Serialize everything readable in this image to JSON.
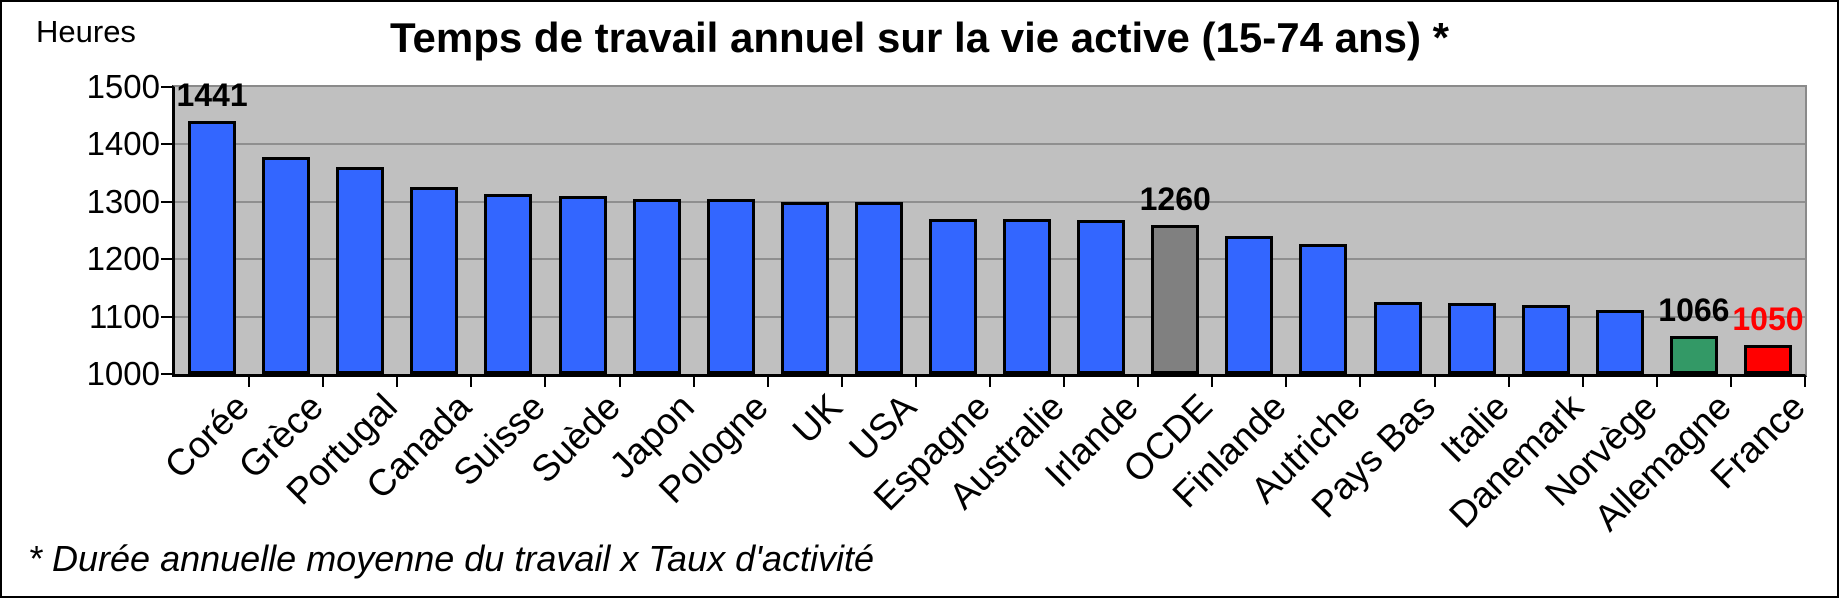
{
  "chart_data": {
    "type": "bar",
    "title": "Temps de travail annuel sur la vie active (15-74 ans) *",
    "ylabel": "Heures",
    "footnote": "* Durée annuelle moyenne du travail x Taux d'activité",
    "ylim": [
      1000,
      1500
    ],
    "yticks": [
      1500,
      1400,
      1300,
      1200,
      1100,
      1000
    ],
    "grid": true,
    "legend": false,
    "plot_bg_color": "#C0C0C0",
    "gridline_color": "#8f8f8f",
    "bar_default_color": "#3366FF",
    "bar_outline_color": "#000000",
    "categories": [
      "Corée",
      "Grèce",
      "Portugal",
      "Canada",
      "Suisse",
      "Suède",
      "Japon",
      "Pologne",
      "UK",
      "USA",
      "Espagne",
      "Australie",
      "Irlande",
      "OCDE",
      "Finlande",
      "Autriche",
      "Pays Bas",
      "Italie",
      "Danemark",
      "Norvège",
      "Allemagne",
      "France"
    ],
    "values": [
      1441,
      1378,
      1360,
      1326,
      1313,
      1310,
      1305,
      1305,
      1300,
      1300,
      1270,
      1270,
      1268,
      1260,
      1240,
      1226,
      1126,
      1124,
      1120,
      1112,
      1066,
      1050
    ],
    "bar_colors": {
      "OCDE": "#808080",
      "Allemagne": "#339966",
      "France": "#FF0000"
    },
    "value_labels": [
      {
        "category": "Corée",
        "text": "1441",
        "color": "#000000"
      },
      {
        "category": "OCDE",
        "text": "1260",
        "color": "#000000"
      },
      {
        "category": "Allemagne",
        "text": "1066",
        "color": "#000000"
      },
      {
        "category": "France",
        "text": "1050",
        "color": "#FF0000"
      }
    ]
  }
}
